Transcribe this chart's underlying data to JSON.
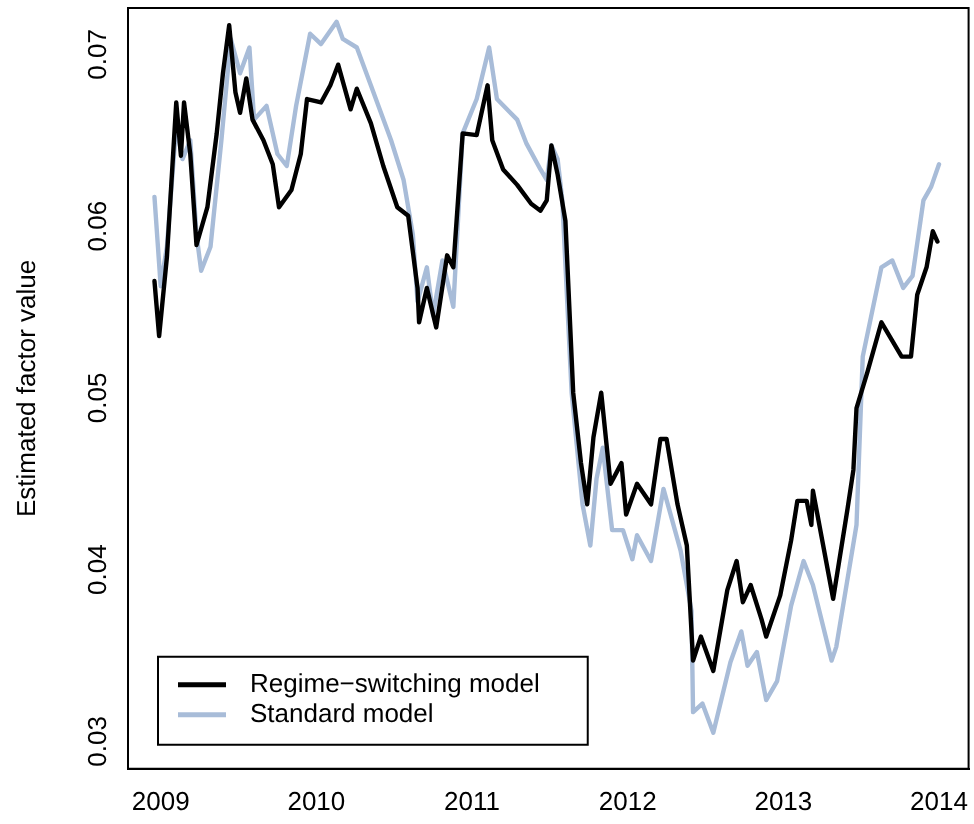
{
  "chart_data": {
    "type": "line",
    "ylabel": "Estimated factor value",
    "xlim": [
      2008.79,
      2014.19
    ],
    "ylim": [
      0.0284,
      0.0727
    ],
    "xticks": [
      2009,
      2010,
      2011,
      2012,
      2013,
      2014
    ],
    "yticks": [
      0.03,
      0.04,
      0.05,
      0.06,
      0.07
    ],
    "grid": false,
    "legend": "bottom left",
    "marker": "none",
    "line_style": "solid",
    "series": [
      {
        "name": "Regime−switching model",
        "color": "#000000",
        "x": [
          2008.96,
          2008.99,
          2009.04,
          2009.1,
          2009.13,
          2009.15,
          2009.19,
          2009.23,
          2009.3,
          2009.36,
          2009.4,
          2009.44,
          2009.48,
          2009.51,
          2009.55,
          2009.59,
          2009.66,
          2009.72,
          2009.76,
          2009.84,
          2009.9,
          2009.94,
          2010.03,
          2010.09,
          2010.14,
          2010.22,
          2010.26,
          2010.35,
          2010.43,
          2010.52,
          2010.59,
          2010.65,
          2010.66,
          2010.71,
          2010.77,
          2010.84,
          2010.88,
          2010.94,
          2011.03,
          2011.1,
          2011.13,
          2011.2,
          2011.29,
          2011.38,
          2011.44,
          2011.48,
          2011.51,
          2011.55,
          2011.6,
          2011.65,
          2011.7,
          2011.74,
          2011.78,
          2011.83,
          2011.89,
          2011.96,
          2011.99,
          2012.06,
          2012.15,
          2012.21,
          2012.25,
          2012.32,
          2012.38,
          2012.42,
          2012.47,
          2012.55,
          2012.64,
          2012.7,
          2012.74,
          2012.79,
          2012.86,
          2012.89,
          2012.98,
          2013.05,
          2013.09,
          2013.15,
          2013.18,
          2013.19,
          2013.32,
          2013.41,
          2013.45,
          2013.47,
          2013.54,
          2013.63,
          2013.76,
          2013.82,
          2013.86,
          2013.92,
          2013.96,
          2013.99
        ],
        "values": [
          0.0568,
          0.0536,
          0.0582,
          0.0672,
          0.0641,
          0.0672,
          0.0642,
          0.0589,
          0.0611,
          0.0654,
          0.0689,
          0.0717,
          0.0678,
          0.0666,
          0.0686,
          0.0662,
          0.065,
          0.0636,
          0.0611,
          0.0621,
          0.0642,
          0.0674,
          0.0672,
          0.0682,
          0.0694,
          0.0668,
          0.068,
          0.066,
          0.0635,
          0.0611,
          0.0606,
          0.0564,
          0.0544,
          0.0564,
          0.0541,
          0.0583,
          0.0576,
          0.0654,
          0.0653,
          0.0682,
          0.065,
          0.0633,
          0.0624,
          0.0613,
          0.0609,
          0.0615,
          0.0647,
          0.063,
          0.0603,
          0.0503,
          0.0462,
          0.0438,
          0.0477,
          0.0503,
          0.045,
          0.0462,
          0.0432,
          0.045,
          0.0438,
          0.0476,
          0.0476,
          0.0438,
          0.0414,
          0.0347,
          0.0361,
          0.0341,
          0.0388,
          0.0405,
          0.0381,
          0.0391,
          0.0371,
          0.0361,
          0.0385,
          0.0417,
          0.044,
          0.044,
          0.0426,
          0.0446,
          0.0383,
          0.0434,
          0.0458,
          0.0494,
          0.0515,
          0.0544,
          0.0524,
          0.0524,
          0.056,
          0.0576,
          0.0597,
          0.0591
        ]
      },
      {
        "name": "Standard model",
        "color": "#a8bcd8",
        "x": [
          2008.96,
          2009.0,
          2009.04,
          2009.1,
          2009.14,
          2009.19,
          2009.23,
          2009.26,
          2009.32,
          2009.39,
          2009.45,
          2009.51,
          2009.57,
          2009.6,
          2009.68,
          2009.75,
          2009.81,
          2009.87,
          2009.96,
          2010.03,
          2010.13,
          2010.17,
          2010.26,
          2010.35,
          2010.48,
          2010.56,
          2010.62,
          2010.65,
          2010.71,
          2010.75,
          2010.81,
          2010.88,
          2010.94,
          2011.03,
          2011.11,
          2011.16,
          2011.29,
          2011.35,
          2011.44,
          2011.48,
          2011.51,
          2011.55,
          2011.58,
          2011.64,
          2011.71,
          2011.76,
          2011.8,
          2011.84,
          2011.9,
          2011.97,
          2012.03,
          2012.06,
          2012.15,
          2012.23,
          2012.34,
          2012.41,
          2012.42,
          2012.48,
          2012.55,
          2012.66,
          2012.73,
          2012.77,
          2012.83,
          2012.89,
          2012.96,
          2013.05,
          2013.13,
          2013.19,
          2013.31,
          2013.34,
          2013.47,
          2013.51,
          2013.63,
          2013.7,
          2013.77,
          2013.83,
          2013.9,
          2013.95,
          2014.0
        ],
        "values": [
          0.0617,
          0.0565,
          0.0588,
          0.0659,
          0.0639,
          0.065,
          0.0595,
          0.0574,
          0.0588,
          0.065,
          0.0709,
          0.0689,
          0.0704,
          0.0662,
          0.067,
          0.0642,
          0.0635,
          0.067,
          0.0712,
          0.0706,
          0.0719,
          0.0709,
          0.0704,
          0.0682,
          0.065,
          0.0627,
          0.0595,
          0.0556,
          0.0576,
          0.0548,
          0.058,
          0.0553,
          0.0654,
          0.0674,
          0.0704,
          0.0674,
          0.0662,
          0.0648,
          0.0633,
          0.0627,
          0.0647,
          0.0639,
          0.0615,
          0.0503,
          0.0438,
          0.0414,
          0.0453,
          0.0471,
          0.0423,
          0.0423,
          0.0406,
          0.042,
          0.0405,
          0.0447,
          0.0411,
          0.0376,
          0.0317,
          0.0322,
          0.0305,
          0.0346,
          0.0364,
          0.0344,
          0.0352,
          0.0324,
          0.0335,
          0.0379,
          0.0405,
          0.0391,
          0.0347,
          0.0355,
          0.0426,
          0.0524,
          0.0576,
          0.058,
          0.0564,
          0.0571,
          0.0615,
          0.0623,
          0.0636
        ]
      }
    ]
  }
}
